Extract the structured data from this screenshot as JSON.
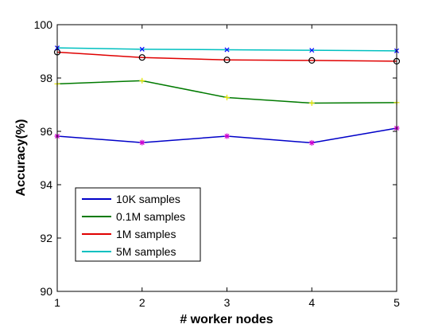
{
  "chart_data": {
    "type": "line",
    "title": "",
    "xlabel": "# worker nodes",
    "ylabel": "Accuracy(%)",
    "x": [
      1,
      2,
      3,
      4,
      5
    ],
    "xlim": [
      1,
      5
    ],
    "ylim": [
      90,
      100
    ],
    "xticks": [
      "1",
      "2",
      "3",
      "4",
      "5"
    ],
    "yticks": [
      "90",
      "92",
      "94",
      "96",
      "98",
      "100"
    ],
    "grid": false,
    "legend_position": "lower-left",
    "series": [
      {
        "name": "10K samples",
        "color": "#0000c8",
        "marker": "star",
        "marker_color": "#d000d0",
        "values": [
          95.82,
          95.58,
          95.82,
          95.57,
          96.12
        ]
      },
      {
        "name": "0.1M samples",
        "color": "#007a00",
        "marker": "plus",
        "marker_color": "#e6e600",
        "values": [
          97.78,
          97.9,
          97.27,
          97.06,
          97.08
        ]
      },
      {
        "name": "1M samples",
        "color": "#e00000",
        "marker": "circle",
        "marker_color": "#000000",
        "values": [
          98.97,
          98.77,
          98.68,
          98.66,
          98.63
        ]
      },
      {
        "name": "5M samples",
        "color": "#00c0c0",
        "marker": "x",
        "marker_color": "#0000ff",
        "values": [
          99.13,
          99.08,
          99.06,
          99.04,
          99.02
        ]
      }
    ]
  }
}
